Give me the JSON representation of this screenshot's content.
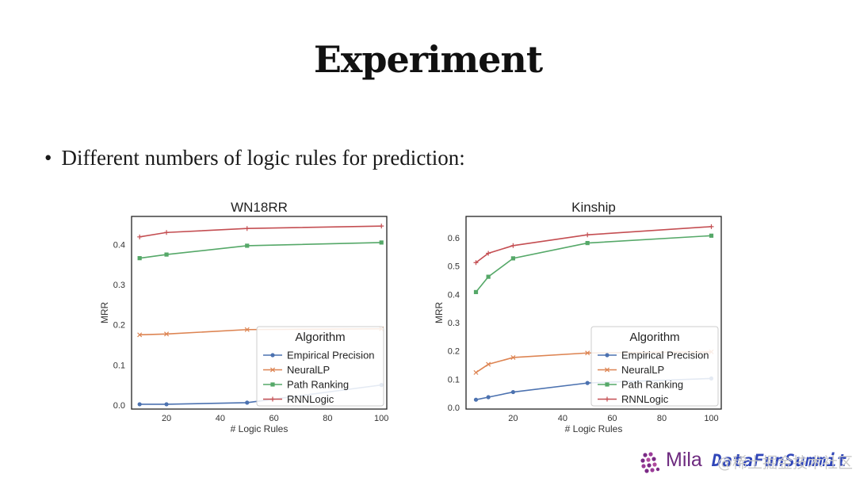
{
  "slide": {
    "title": "Experiment",
    "bullet": "Different numbers of logic rules for prediction:"
  },
  "footer": {
    "logo_left": "Mila",
    "watermark": "@稀土掘金技术社区",
    "logo_right": "DataFunSummit"
  },
  "colors": {
    "Empirical Precision": "#4c72b0",
    "NeuralLP": "#dd8452",
    "Path Ranking": "#55a868",
    "RNNLogic": "#c44e52"
  },
  "chart_data": [
    {
      "type": "line",
      "title": "WN18RR",
      "xlabel": "# Logic Rules",
      "ylabel": "MRR",
      "xlim": [
        7,
        102
      ],
      "ylim": [
        -0.01,
        0.47
      ],
      "xticks": [
        20,
        40,
        60,
        80,
        100
      ],
      "yticks": [
        0.0,
        0.1,
        0.2,
        0.3,
        0.4
      ],
      "ytick_labels": [
        "0.0",
        "0.1",
        "0.2",
        "0.3",
        "0.4"
      ],
      "legend_title": "Algorithm",
      "legend_position": "lower-right",
      "x": [
        10,
        20,
        50,
        100
      ],
      "series": [
        {
          "name": "Empirical Precision",
          "marker": "circle",
          "values": [
            0.002,
            0.002,
            0.006,
            0.05
          ]
        },
        {
          "name": "NeuralLP",
          "marker": "x",
          "values": [
            0.175,
            0.177,
            0.188,
            0.19
          ]
        },
        {
          "name": "Path Ranking",
          "marker": "square",
          "values": [
            0.366,
            0.375,
            0.397,
            0.405
          ]
        },
        {
          "name": "RNNLogic",
          "marker": "plus",
          "values": [
            0.419,
            0.43,
            0.44,
            0.446
          ]
        }
      ]
    },
    {
      "type": "line",
      "title": "Kinship",
      "xlabel": "# Logic Rules",
      "ylabel": "MRR",
      "xlim": [
        1,
        104
      ],
      "ylim": [
        -0.005,
        0.675
      ],
      "xticks": [
        20,
        40,
        60,
        80,
        100
      ],
      "yticks": [
        0.0,
        0.1,
        0.2,
        0.3,
        0.4,
        0.5,
        0.6
      ],
      "ytick_labels": [
        "0.0",
        "0.1",
        "0.2",
        "0.3",
        "0.4",
        "0.5",
        "0.6"
      ],
      "legend_title": "Algorithm",
      "legend_position": "lower-right",
      "x": [
        5,
        10,
        20,
        50,
        100
      ],
      "series": [
        {
          "name": "Empirical Precision",
          "marker": "circle",
          "values": [
            0.028,
            0.037,
            0.055,
            0.087,
            0.103
          ]
        },
        {
          "name": "NeuralLP",
          "marker": "x",
          "values": [
            0.124,
            0.153,
            0.177,
            0.193,
            0.197
          ]
        },
        {
          "name": "Path Ranking",
          "marker": "square",
          "values": [
            0.408,
            0.462,
            0.527,
            0.581,
            0.607
          ]
        },
        {
          "name": "RNNLogic",
          "marker": "plus",
          "values": [
            0.512,
            0.545,
            0.572,
            0.61,
            0.639
          ]
        }
      ]
    }
  ]
}
